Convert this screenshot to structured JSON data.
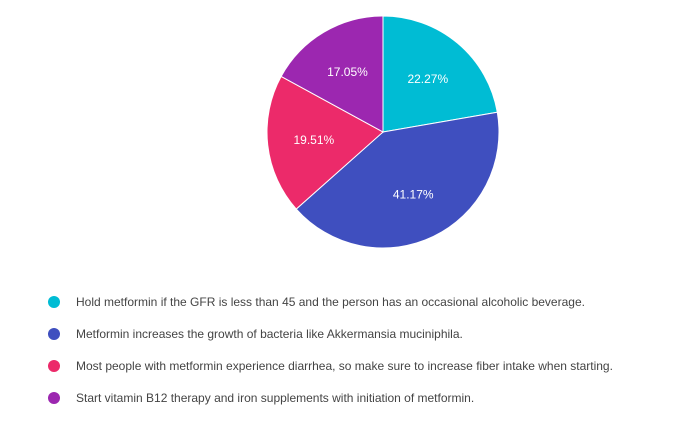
{
  "chart_data": {
    "type": "pie",
    "title": "",
    "start_angle_deg": 0,
    "direction": "clockwise",
    "slices": [
      {
        "label": "Hold metformin if the GFR is less than 45 and the person has an occasional alcoholic beverage.",
        "value": 22.27,
        "value_label": "22.27%",
        "color": "#00bcd4"
      },
      {
        "label": "Metformin increases the growth of bacteria like Akkermansia muciniphila.",
        "value": 41.17,
        "value_label": "41.17%",
        "color": "#3f4fbf"
      },
      {
        "label": "Most people with metformin experience diarrhea, so make sure to increase fiber intake when starting.",
        "value": 19.51,
        "value_label": "19.51%",
        "color": "#ec2a6a"
      },
      {
        "label": "Start vitamin B12 therapy and iron supplements with initiation of metformin.",
        "value": 17.05,
        "value_label": "17.05%",
        "color": "#9c27b0"
      }
    ],
    "legend_position": "bottom"
  }
}
